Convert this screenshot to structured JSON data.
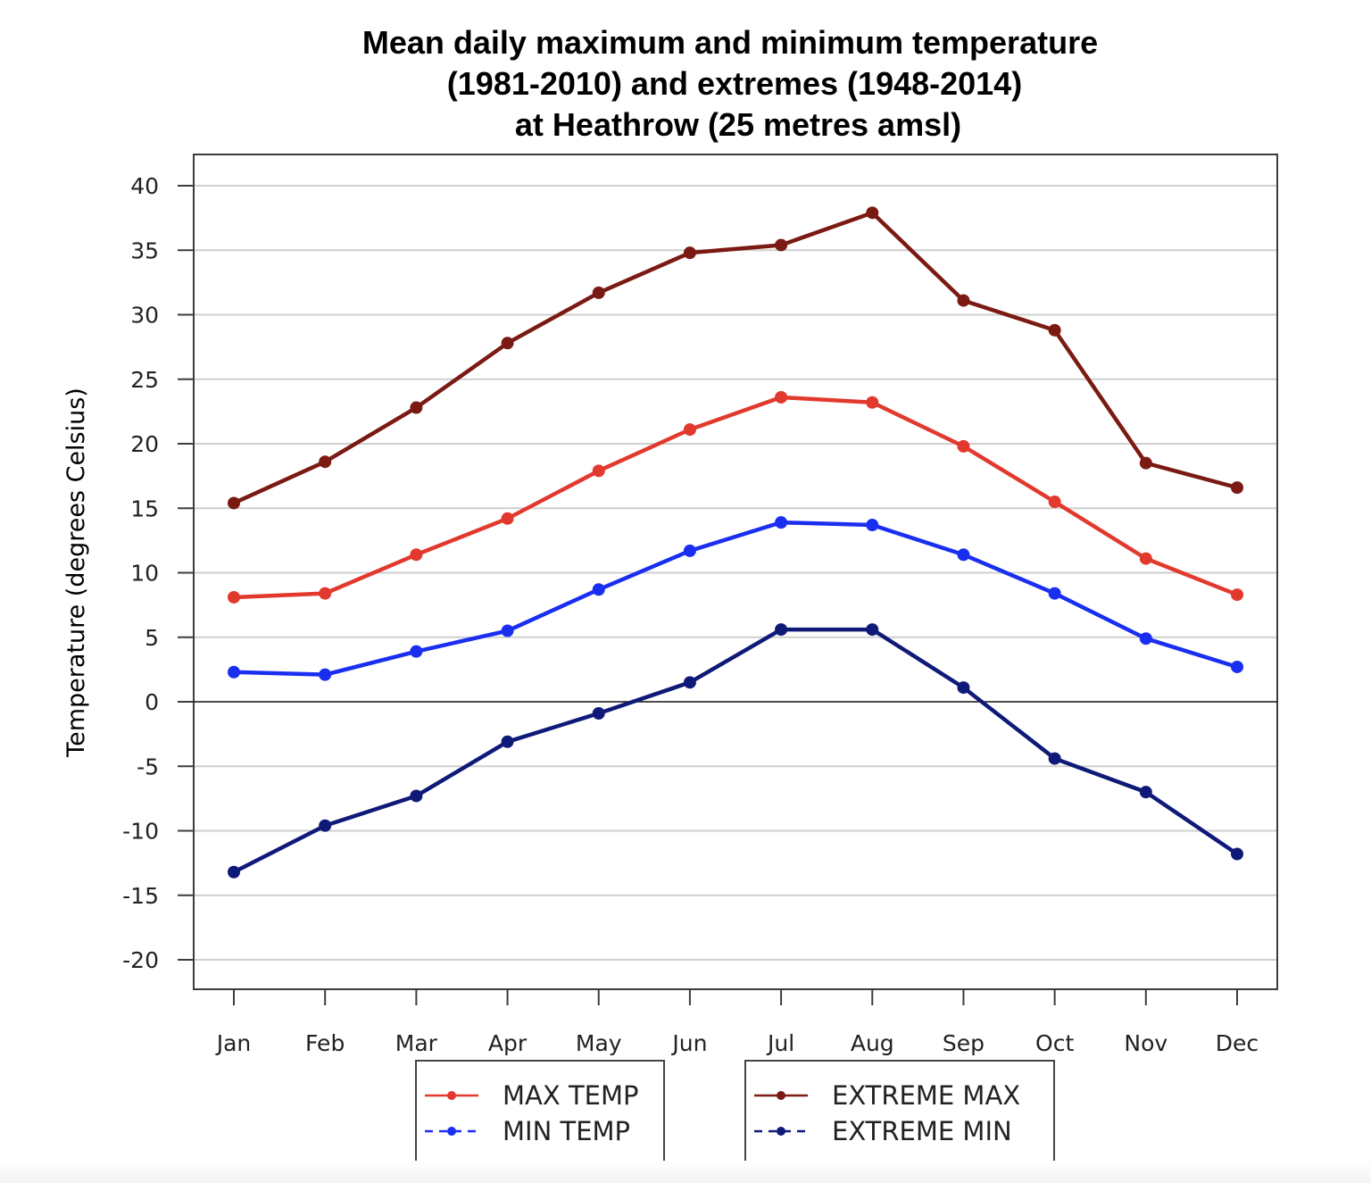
{
  "chart_data": {
    "type": "line",
    "title": "Mean daily maximum and minimum temperature",
    "subtitle": "(1981-2010) and extremes (1948-2014)",
    "location": "at Heathrow (25 metres amsl)",
    "xlabel": "",
    "ylabel": "Temperature (degrees Celsius)",
    "ylim": [
      -23.5,
      42.5
    ],
    "yticks": [
      40,
      35,
      30,
      25,
      20,
      15,
      10,
      5,
      0,
      -5,
      -10,
      -15,
      -20
    ],
    "ytick_labels": [
      "40",
      "35",
      "30",
      "25",
      "20",
      "15",
      "10",
      "5",
      "0",
      "-5",
      "-10",
      "-15",
      "-20"
    ],
    "grid": true,
    "zero_line": true,
    "categories": [
      "Jan",
      "Feb",
      "Mar",
      "Apr",
      "May",
      "Jun",
      "Jul",
      "Aug",
      "Sep",
      "Oct",
      "Nov",
      "Dec"
    ],
    "series": [
      {
        "name": "EXTREME MAX",
        "color": "#7a1a12",
        "line_style": "solid",
        "values": [
          15.4,
          18.6,
          22.8,
          27.8,
          31.7,
          34.8,
          35.4,
          37.9,
          31.1,
          28.8,
          18.5,
          16.6
        ]
      },
      {
        "name": "MAX TEMP",
        "color": "#e2392e",
        "line_style": "solid",
        "values": [
          8.1,
          8.4,
          11.4,
          14.2,
          17.9,
          21.1,
          23.6,
          23.2,
          19.8,
          15.5,
          11.1,
          8.3
        ]
      },
      {
        "name": "MIN TEMP",
        "color": "#1a2ef0",
        "line_style": "dashed",
        "values": [
          2.3,
          2.1,
          3.9,
          5.5,
          8.7,
          11.7,
          13.9,
          13.7,
          11.4,
          8.4,
          4.9,
          2.7
        ]
      },
      {
        "name": "EXTREME MIN",
        "color": "#0f1a78",
        "line_style": "dashed",
        "values": [
          -13.2,
          -9.6,
          -7.3,
          -3.1,
          -0.9,
          1.5,
          5.6,
          5.6,
          1.1,
          -4.4,
          -7.0,
          -11.8
        ]
      }
    ],
    "legend": {
      "placement": "bottom",
      "groups": [
        [
          "MAX TEMP",
          "MIN TEMP"
        ],
        [
          "EXTREME MAX",
          "EXTREME MIN"
        ]
      ]
    }
  }
}
